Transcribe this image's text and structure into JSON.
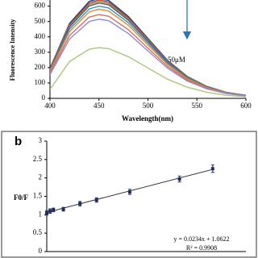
{
  "chart_data": [
    {
      "type": "line",
      "xlabel": "Wavelength(nm)",
      "ylabel": "Fluorescence Intensity",
      "annotation": "50μM",
      "x": [
        400,
        420,
        440,
        450,
        460,
        480,
        500,
        520,
        540,
        560,
        580,
        600
      ],
      "xlim": [
        400,
        600
      ],
      "xticks": [
        400,
        450,
        500,
        550,
        600
      ],
      "ylim": [
        0,
        640
      ],
      "yticks": [
        0,
        100,
        200,
        300,
        400,
        500,
        600
      ],
      "series": [
        {
          "color": "#1f3f8f",
          "values": [
            195,
            488,
            631,
            650,
            637,
            533,
            390,
            247,
            143,
            78,
            39,
            20
          ]
        },
        {
          "color": "#c0392b",
          "values": [
            192,
            480,
            621,
            640,
            627,
            525,
            384,
            243,
            141,
            77,
            38,
            19
          ]
        },
        {
          "color": "#7a9a3a",
          "values": [
            189,
            473,
            611,
            630,
            617,
            517,
            378,
            239,
            139,
            76,
            38,
            19
          ]
        },
        {
          "color": "#6a4c93",
          "values": [
            186,
            465,
            601,
            620,
            608,
            508,
            372,
            236,
            136,
            74,
            37,
            19
          ]
        },
        {
          "color": "#2e9bb0",
          "values": [
            180,
            450,
            582,
            600,
            588,
            492,
            360,
            228,
            132,
            72,
            36,
            18
          ]
        },
        {
          "color": "#e8862a",
          "values": [
            174,
            435,
            563,
            580,
            568,
            476,
            348,
            220,
            128,
            70,
            35,
            17
          ]
        },
        {
          "color": "#d46a6a",
          "values": [
            164,
            409,
            529,
            545,
            534,
            447,
            327,
            207,
            120,
            65,
            33,
            16
          ]
        },
        {
          "color": "#8e8ccf",
          "values": [
            155,
            386,
            500,
            515,
            505,
            422,
            309,
            196,
            113,
            62,
            31,
            15
          ]
        },
        {
          "color": "#a8c878",
          "values": [
            59,
            240,
            320,
            330,
            323,
            271,
            198,
            125,
            73,
            40,
            20,
            10
          ]
        }
      ]
    },
    {
      "type": "scatter",
      "panel_label": "b",
      "ylabel": "F0/F",
      "x": [
        0,
        1,
        2,
        5,
        10,
        15,
        25,
        40,
        50
      ],
      "xlim": [
        0,
        60
      ],
      "ylim": [
        0,
        3
      ],
      "yticks": [
        0,
        0.5,
        1,
        1.5,
        2,
        2.5,
        3
      ],
      "series": [
        {
          "color": "#1f2d5a",
          "values": [
            1.05,
            1.1,
            1.13,
            1.15,
            1.3,
            1.4,
            1.62,
            1.97,
            2.25
          ],
          "errors": [
            0.06,
            0.06,
            0.05,
            0.05,
            0.06,
            0.06,
            0.07,
            0.08,
            0.1
          ]
        }
      ],
      "trendline": {
        "slope": 0.0234,
        "intercept": 1.0622,
        "color": "#333333",
        "label": "y = 0.0234x + 1.0622",
        "r2_label": "R² = 0.9908"
      }
    }
  ]
}
